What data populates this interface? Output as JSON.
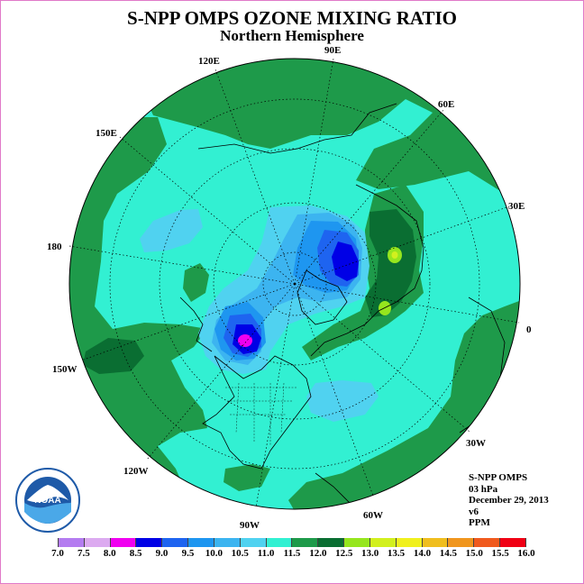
{
  "title": "S-NPP OMPS OZONE MIXING RATIO",
  "subtitle": "Northern Hemisphere",
  "logo_text": "NOAA",
  "logo_ring_text": "NATIONAL OCEANIC AND ATMOSPHERIC ADMINISTRATION U.S. DEPARTMENT OF COMMERCE",
  "longitude_labels": {
    "l90e": "90E",
    "l60e": "60E",
    "l120e": "120E",
    "l150e": "150E",
    "l30e": "30E",
    "l180": "180",
    "l0": "0",
    "l150w": "150W",
    "l30w": "30W",
    "l120w": "120W",
    "l60w": "60W",
    "l90w": "90W"
  },
  "info": {
    "instrument": "S-NPP OMPS",
    "level": "03 hPa",
    "date": "December 29, 2013",
    "version": "v6",
    "units": "PPM"
  },
  "colorbar": {
    "ticks": [
      "7.0",
      "7.5",
      "8.0",
      "8.5",
      "9.0",
      "9.5",
      "10.0",
      "10.5",
      "11.0",
      "11.5",
      "12.0",
      "12.5",
      "13.0",
      "13.5",
      "14.0",
      "14.5",
      "15.0",
      "15.5",
      "16.0"
    ],
    "colors": [
      "#b47cf0",
      "#dcaaf0",
      "#f000f0",
      "#0000e6",
      "#1e64f0",
      "#1e96f0",
      "#3cb4f0",
      "#50d2f0",
      "#32f0d2",
      "#1e9a4a",
      "#0a6e32",
      "#96e61e",
      "#d2f01e",
      "#f0f01e",
      "#f0be1e",
      "#f0961e",
      "#f05a1e",
      "#f00014"
    ]
  },
  "map_colors": {
    "ppm_11_0": "#32f0d2",
    "ppm_11_5": "#1e9a4a",
    "ppm_12_0": "#0a6e32",
    "ppm_10_5": "#50d2f0",
    "ppm_10_0": "#3cb4f0",
    "ppm_9_5": "#1e96f0",
    "ppm_9_0": "#1e64f0",
    "ppm_8_5": "#0000e6",
    "ppm_8_0": "#f000f0",
    "ppm_12_5": "#96e61e",
    "ppm_13_0": "#d2f01e"
  }
}
